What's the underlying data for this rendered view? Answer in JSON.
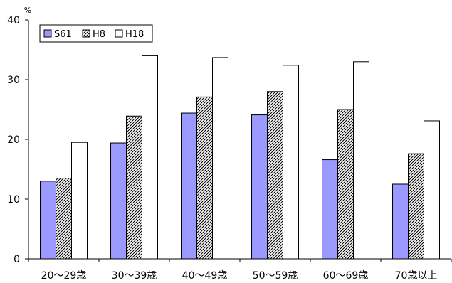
{
  "chart_data": {
    "type": "bar",
    "title": "",
    "xlabel": "",
    "ylabel": "",
    "y_unit": "%",
    "ylim": [
      0,
      40
    ],
    "yticks": [
      0,
      10,
      20,
      30,
      40
    ],
    "grid": false,
    "legend_position": "top-left",
    "categories": [
      "20～29歳",
      "30～39歳",
      "40～49歳",
      "50～59歳",
      "60～69歳",
      "70歳以上"
    ],
    "series": [
      {
        "name": "S61",
        "values": [
          13.0,
          19.4,
          24.4,
          24.1,
          16.6,
          12.5
        ],
        "color": "#9999ff",
        "pattern": "solid"
      },
      {
        "name": "H8",
        "values": [
          13.5,
          23.9,
          27.1,
          28.0,
          25.0,
          17.6
        ],
        "color": "#ffffff",
        "pattern": "diagonal-hatch"
      },
      {
        "name": "H18",
        "values": [
          19.5,
          34.0,
          33.7,
          32.4,
          33.0,
          23.1
        ],
        "color": "#ffffff",
        "pattern": "solid"
      }
    ]
  }
}
